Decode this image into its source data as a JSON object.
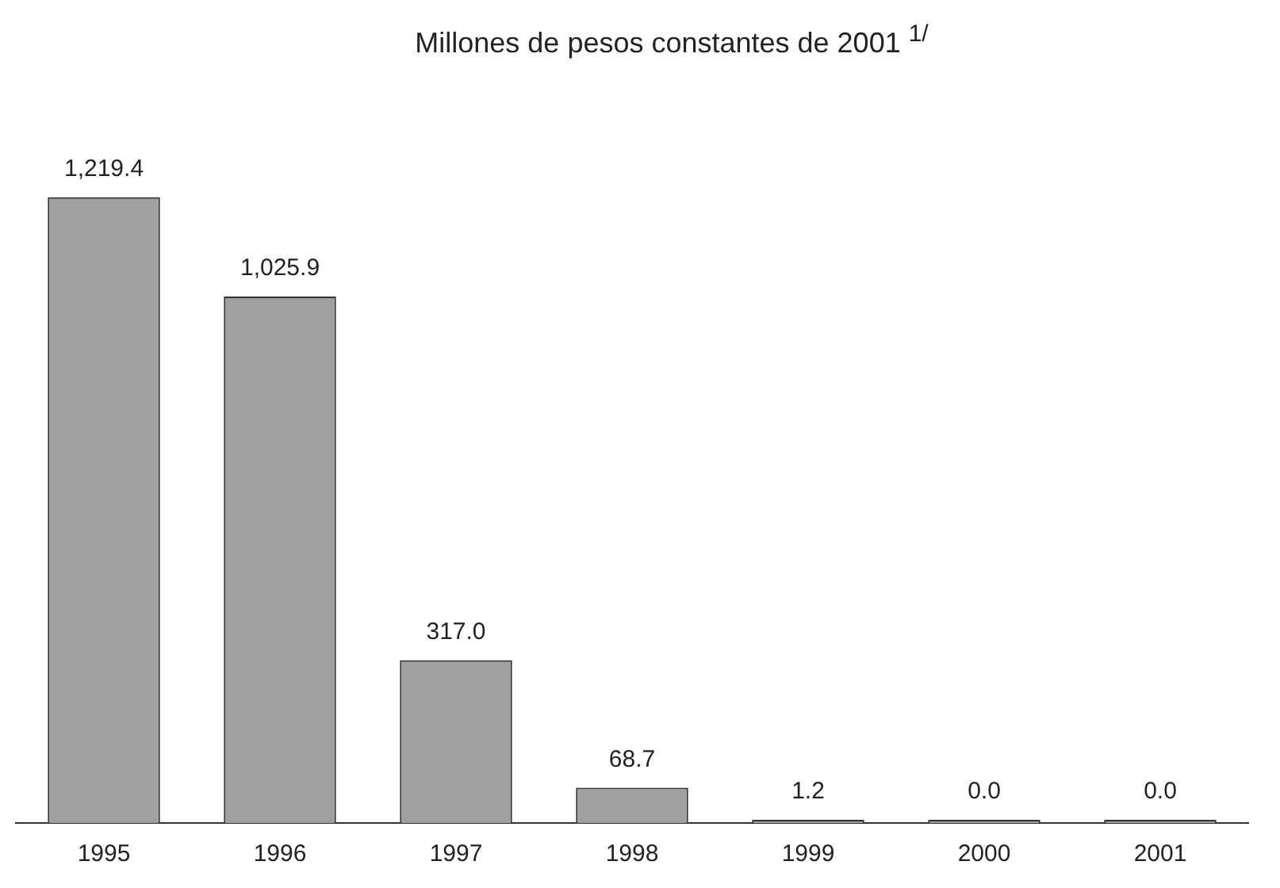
{
  "chart_data": {
    "type": "bar",
    "title": "Millones de pesos constantes de 2001 $^{1/}$",
    "categories": [
      "1995",
      "1996",
      "1997",
      "1998",
      "1999",
      "2000",
      "2001"
    ],
    "values": [
      1219.4,
      1025.9,
      317.0,
      68.7,
      1.2,
      0.0,
      0.0
    ],
    "value_labels": [
      "1,219.4",
      "1,025.9",
      "317.0",
      "68.7",
      "1.2",
      "0.0",
      "0.0"
    ],
    "color": "#a0a0a0",
    "grid": false,
    "legend": false
  }
}
